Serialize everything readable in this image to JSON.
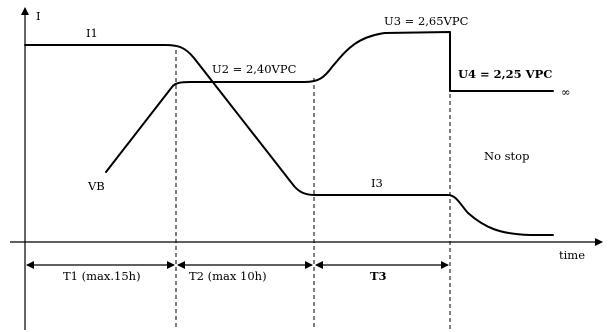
{
  "axes": {
    "y_label": "I",
    "x_label": "time"
  },
  "curves": {
    "i1_label": "I1",
    "vb_label": "VB",
    "i3_label": "I3"
  },
  "voltages": {
    "u2": "U2 = 2,40VPC",
    "u3": "U3 = 2,65VPC",
    "u4": "U4 = 2,25 VPC",
    "infinity": "∞"
  },
  "phases": {
    "t1": "T1 (max.15h)",
    "t2": "T2 (max 10h)",
    "t3": "T3"
  },
  "notes": {
    "no_stop": "No stop"
  }
}
